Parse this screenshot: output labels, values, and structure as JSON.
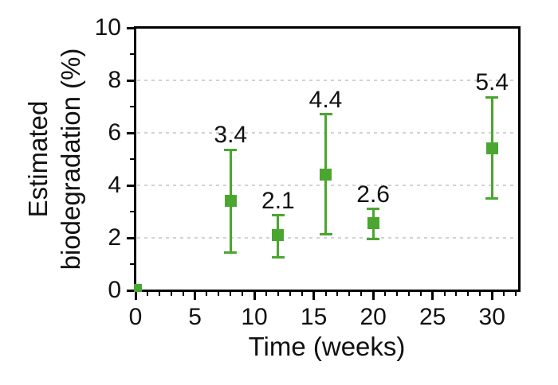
{
  "figure": {
    "background": "#ffffff"
  },
  "chart_data": {
    "type": "scatter",
    "title": "",
    "xlabel": "Time (weeks)",
    "ylabel_lines": [
      "Estimated",
      "biodegradation (%)"
    ],
    "xlim": [
      0,
      32.2
    ],
    "ylim": [
      0,
      10
    ],
    "x_major_ticks": [
      0,
      5,
      10,
      15,
      20,
      25,
      30
    ],
    "x_minor_tick_step": 1,
    "y_major_ticks": [
      0,
      2,
      4,
      6,
      8,
      10
    ],
    "y_minor_ticks": [
      1,
      3,
      5,
      7,
      9
    ],
    "gridlines_y": [
      2,
      4,
      6,
      8
    ],
    "grid_style": "dashed",
    "legend": null,
    "colors": {
      "series_green": "#4AA62F",
      "axis": "#000000",
      "grid": "#d2d2d2",
      "text": "#111111"
    },
    "series": [
      {
        "name": "estimated-biodegradation",
        "marker": "square",
        "color": "#4AA62F",
        "points": [
          {
            "x": 0.2,
            "y": 0.1,
            "label": "",
            "marker_size": 10
          },
          {
            "x": 8,
            "y": 3.4,
            "err_hi": 5.35,
            "err_lo": 1.45,
            "label": "3.4"
          },
          {
            "x": 12,
            "y": 2.1,
            "err_hi": 2.85,
            "err_lo": 1.25,
            "label": "2.1"
          },
          {
            "x": 16,
            "y": 4.4,
            "err_hi": 6.7,
            "err_lo": 2.15,
            "label": "4.4"
          },
          {
            "x": 20,
            "y": 2.55,
            "err_hi": 3.1,
            "err_lo": 1.95,
            "label": "2.6"
          },
          {
            "x": 30,
            "y": 5.4,
            "err_hi": 7.35,
            "err_lo": 3.5,
            "label": "5.4"
          }
        ]
      }
    ]
  }
}
